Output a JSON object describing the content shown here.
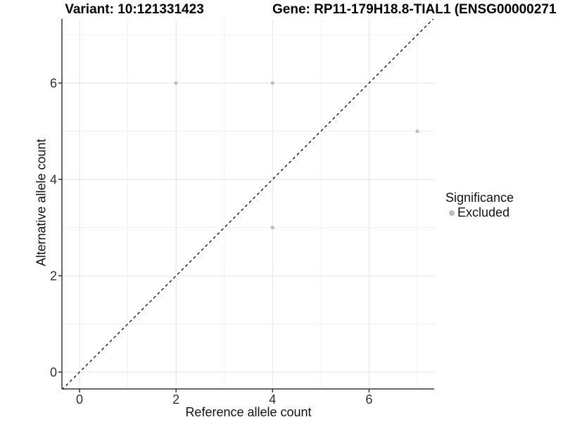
{
  "chart_data": {
    "type": "scatter",
    "titles": {
      "left": "Variant: 10:121331423",
      "right": "Gene: RP11-179H18.8-TIAL1 (ENSG00000271"
    },
    "xlabel": "Reference allele count",
    "ylabel": "Alternative allele count",
    "xlim": [
      -0.365,
      7.35
    ],
    "ylim": [
      -0.35,
      7.33
    ],
    "x_major_ticks": [
      0,
      2,
      4,
      6
    ],
    "y_major_ticks": [
      0,
      2,
      4,
      6
    ],
    "x_minor_ticks": [
      1,
      3,
      5,
      7
    ],
    "y_minor_ticks": [
      1,
      3,
      5,
      7
    ],
    "grid": "on",
    "series": [
      {
        "name": "Excluded",
        "color": "#bebebe",
        "points": [
          [
            2,
            6
          ],
          [
            4,
            6
          ],
          [
            4,
            3
          ],
          [
            7,
            5
          ]
        ]
      }
    ],
    "reference_line": {
      "type": "abline",
      "slope": 1,
      "intercept": 0,
      "style": "dashed",
      "color": "#000000"
    },
    "legend": {
      "title": "Significance",
      "position": "right",
      "items": [
        {
          "label": "Excluded",
          "color": "#bebebe"
        }
      ]
    },
    "colors": {
      "grid_major": "#e4e4e4",
      "grid_minor": "#f2f2f2",
      "axis": "#333333",
      "tick_text": "#303030",
      "background": "#ffffff"
    }
  }
}
